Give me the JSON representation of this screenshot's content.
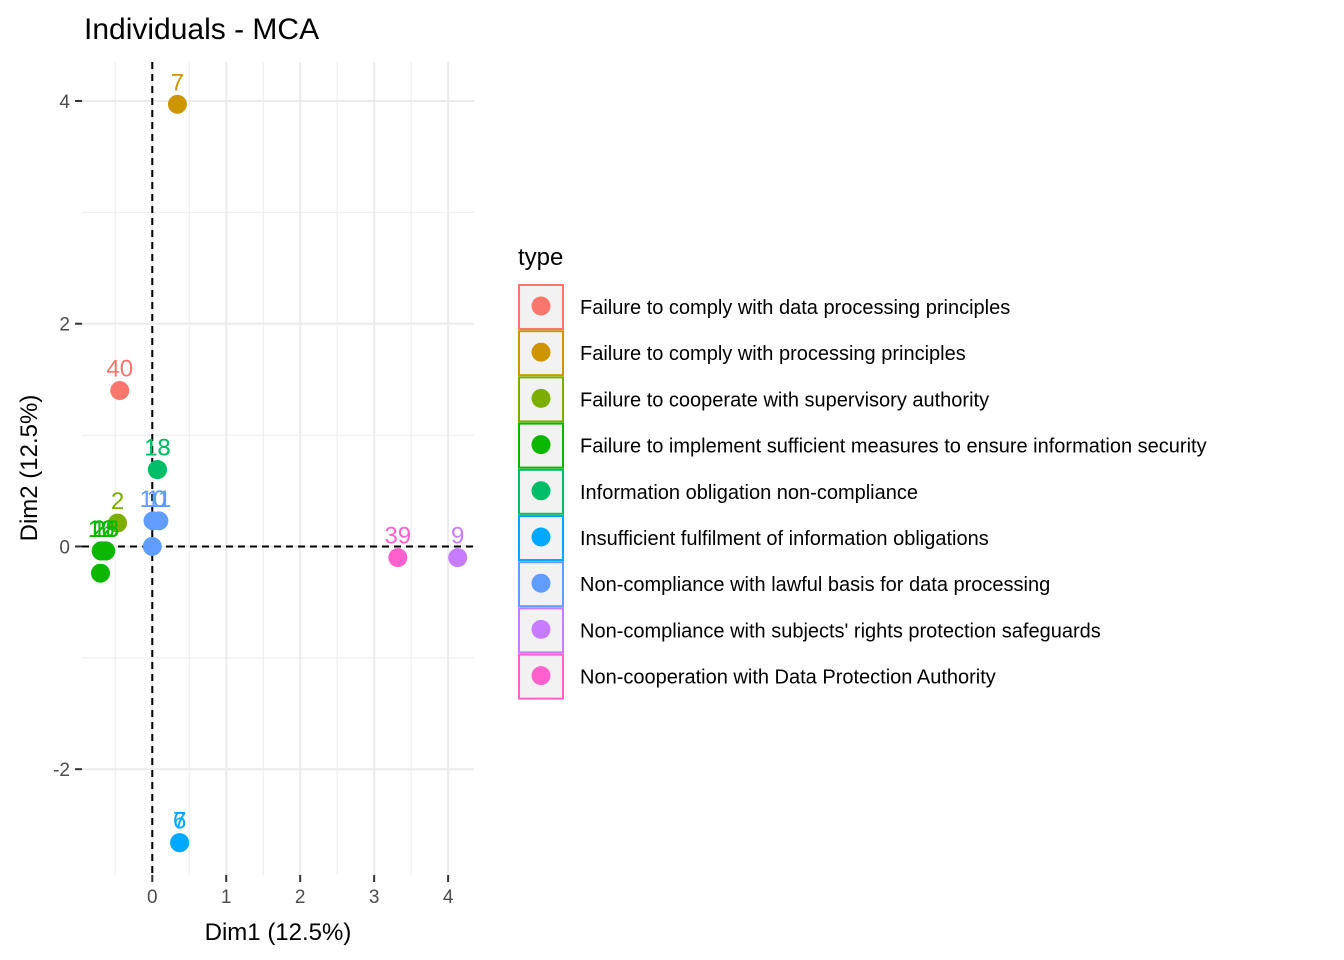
{
  "chart_data": {
    "type": "scatter",
    "title": "Individuals - MCA",
    "xlabel": "Dim1 (12.5%)",
    "ylabel": "Dim2 (12.5%)",
    "xlim": [
      -0.95,
      4.35
    ],
    "ylim": [
      -2.95,
      4.35
    ],
    "xticks": [
      0,
      1,
      2,
      3,
      4
    ],
    "yticks": [
      -2,
      0,
      2,
      4
    ],
    "grid": true,
    "reference_lines": {
      "x": 0,
      "y": 0
    },
    "legend": {
      "title": "type",
      "position": "right"
    },
    "series": [
      {
        "name": "Failure to comply with data processing principles",
        "color": "#F8766D",
        "points": [
          {
            "x": -0.44,
            "y": 1.4,
            "label": "40"
          }
        ]
      },
      {
        "name": "Failure to comply with processing principles",
        "color": "#CD9600",
        "points": [
          {
            "x": 0.34,
            "y": 3.97,
            "label": "7"
          }
        ]
      },
      {
        "name": "Failure to cooperate with supervisory authority",
        "color": "#7CAE00",
        "points": [
          {
            "x": -0.47,
            "y": 0.21,
            "label": "2"
          }
        ]
      },
      {
        "name": "Failure to implement sufficient measures to ensure information security",
        "color": "#0CB702",
        "points": [
          {
            "x": -0.69,
            "y": -0.04,
            "label": "12"
          },
          {
            "x": -0.63,
            "y": -0.04,
            "label": "15"
          },
          {
            "x": -0.69,
            "y": -0.04,
            "label": "16"
          },
          {
            "x": -0.63,
            "y": -0.04,
            "label": "28"
          },
          {
            "x": -0.7,
            "y": -0.24,
            "label": ""
          }
        ]
      },
      {
        "name": "Information obligation non-compliance",
        "color": "#00BE67",
        "points": [
          {
            "x": 0.07,
            "y": 0.69,
            "label": "13"
          },
          {
            "x": 0.07,
            "y": 0.69,
            "label": "18"
          }
        ]
      },
      {
        "name": "Insufficient fulfilment of information obligations",
        "color": "#00A9FF",
        "points": [
          {
            "x": 0.37,
            "y": -2.66,
            "label": "6"
          },
          {
            "x": 0.37,
            "y": -2.66,
            "label": "7"
          }
        ]
      },
      {
        "name": "Non-compliance with lawful basis for data processing",
        "color": "#619CFF",
        "points": [
          {
            "x": 0.01,
            "y": 0.23,
            "label": "10"
          },
          {
            "x": 0.09,
            "y": 0.23,
            "label": "11"
          },
          {
            "x": 0.0,
            "y": 0.0,
            "label": ""
          }
        ]
      },
      {
        "name": "Non-compliance with subjects' rights protection safeguards",
        "color": "#C77CFF",
        "points": [
          {
            "x": 4.13,
            "y": -0.1,
            "label": "9"
          }
        ]
      },
      {
        "name": "Non-cooperation with Data Protection Authority",
        "color": "#FF61CC",
        "points": [
          {
            "x": 3.32,
            "y": -0.1,
            "label": "39"
          }
        ]
      }
    ]
  }
}
